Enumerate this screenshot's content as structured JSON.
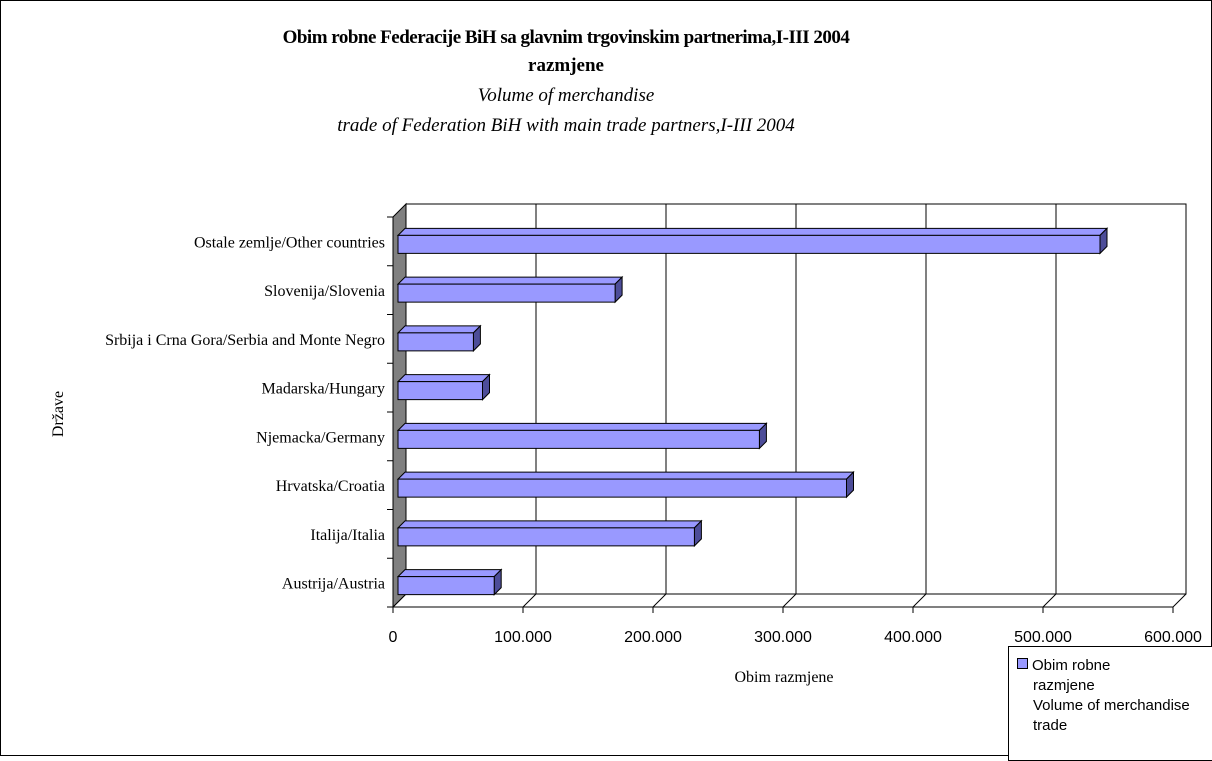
{
  "chart_data": {
    "type": "bar",
    "orientation": "horizontal",
    "title_lines": [
      "Obim robne Federacije BiH sa glavnim trgovinskim partnerima,I-III 2004",
      "razmjene",
      "Volume of merchandise",
      "trade of Federation BiH with main trade partners,I-III 2004"
    ],
    "xlabel": "Obim razmjene",
    "ylabel": "Države",
    "categories": [
      "Austrija/Austria",
      "Italija/Italia",
      "Hrvatska/Croatia",
      "Njemacka/Germany",
      "Madarska/Hungary",
      "Srbija i Crna Gora/Serbia and Monte Negro",
      "Slovenija/Slovenia",
      "Ostale zemlje/Other countries"
    ],
    "series": [
      {
        "name": "Obim robne razmjene Volume of merchandise trade",
        "values": [
          74000,
          228000,
          345000,
          278000,
          65000,
          58000,
          167000,
          540000
        ]
      }
    ],
    "xlim": [
      0,
      600000
    ],
    "x_ticks": [
      0,
      100000,
      200000,
      300000,
      400000,
      500000,
      600000
    ],
    "x_tick_labels": [
      "0",
      "100.000",
      "200.000",
      "300.000",
      "400.000",
      "500.000",
      "600.000"
    ],
    "grid": "vertical",
    "legend_position": "bottom-right",
    "legend_lines": [
      "Obim robne",
      "razmjene",
      "Volume of merchandise",
      "trade"
    ],
    "colors": {
      "bar_front": "#9999ff",
      "bar_side": "#4d4d99",
      "wall": "#808080"
    }
  }
}
